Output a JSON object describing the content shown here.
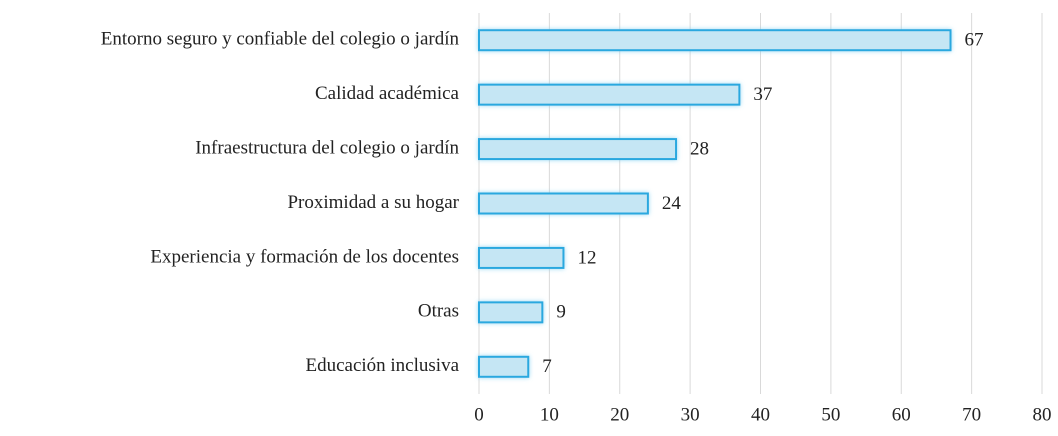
{
  "chart_data": {
    "type": "barh",
    "categories": [
      "Entorno seguro y confiable del colegio o jardín",
      "Calidad académica",
      "Infraestructura del colegio o jardín",
      "Proximidad a su hogar",
      "Experiencia y formación de los docentes",
      "Otras",
      "Educación inclusiva"
    ],
    "values": [
      67,
      37,
      28,
      24,
      12,
      9,
      7
    ],
    "color": "#c5e6f4",
    "edge_color": "#2aa8df",
    "xlim": [
      0,
      80
    ],
    "xticks": [
      0,
      10,
      20,
      30,
      40,
      50,
      60,
      70,
      80
    ],
    "grid": true
  }
}
